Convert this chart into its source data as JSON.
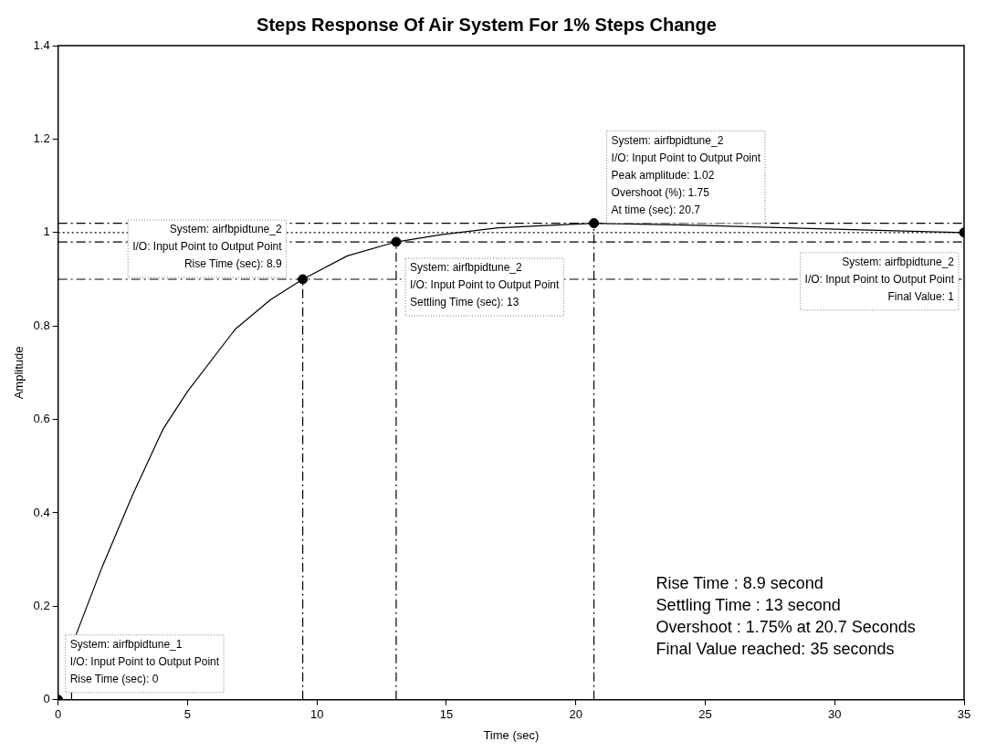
{
  "chart_data": {
    "type": "line",
    "title": "Steps Response Of Air System For 1% Steps Change",
    "xlabel": "Time (sec)",
    "ylabel": "Amplitude",
    "xlim": [
      0,
      35
    ],
    "xticks": [
      0,
      5,
      10,
      15,
      20,
      25,
      30,
      35
    ],
    "ylim": [
      0,
      1.4
    ],
    "yticks": [
      0,
      0.2,
      0.4,
      0.6,
      0.8,
      1,
      1.2,
      1.4
    ],
    "grid": false,
    "legend": false,
    "series": [
      {
        "type": "line",
        "color": "#000000",
        "marker": "none",
        "x": [
          0.69,
          1.69,
          2.89,
          4.06,
          5,
          6.84,
          8.2,
          9.45,
          11.17,
          13.06,
          14.74,
          17,
          20.7,
          25,
          30,
          35
        ],
        "values": [
          0.139,
          0.283,
          0.44,
          0.58,
          0.66,
          0.793,
          0.856,
          0.9,
          0.95,
          0.98,
          0.995,
          1.01,
          1.02,
          1.015,
          1.007,
          1
        ]
      },
      {
        "type": "scatter",
        "color": "#000000",
        "marker": "circle",
        "x": [
          0,
          9.45,
          13.06,
          20.7,
          35
        ],
        "values": [
          0,
          0.9,
          0.98,
          1.02,
          1
        ]
      }
    ],
    "ref_lines": [
      {
        "axis": "y",
        "value": 1.02,
        "line_style": "dashed"
      },
      {
        "axis": "y",
        "value": 1,
        "line_style": "dotted"
      },
      {
        "axis": "y",
        "value": 0.98,
        "line_style": "dashed"
      },
      {
        "axis": "y",
        "value": 0.9,
        "line_style": "dashed"
      },
      {
        "axis": "x",
        "value": 0.52,
        "line_style": "dashed"
      },
      {
        "axis": "x",
        "value": 9.45,
        "line_style": "dashed"
      },
      {
        "axis": "x",
        "value": 13.06,
        "line_style": "dashed"
      },
      {
        "axis": "x",
        "value": 20.7,
        "line_style": "dashed"
      }
    ],
    "annotations": [
      {
        "text": "System: airfbpidtune_1\nI/O: Input Point to Output Point\nRise Time (sec): 0",
        "x": 0,
        "y": 0
      },
      {
        "text": "System: airfbpidtune_2\nI/O: Input Point to Output Point\nRise Time (sec): 8.9",
        "x": 9.45,
        "y": 0.9
      },
      {
        "text": "System: airfbpidtune_2\nI/O: Input Point to Output Point\nSettling Time (sec): 13",
        "x": 13.06,
        "y": 0.98
      },
      {
        "text": "System: airfbpidtune_2\nI/O: Input Point to Output Point\nPeak amplitude: 1.02\nOvershoot (%): 1.75\nAt time (sec): 20.7",
        "x": 20.7,
        "y": 1.02
      },
      {
        "text": "System: airfbpidtune_2\nI/O: Input Point to Output Point\nFinal Value: 1",
        "x": 35,
        "y": 1
      },
      "Rise Time : 8.9 second\nSettling Time : 13 second\nOvershoot : 1.75% at 20.7 Seconds\nFinal Value reached: 35 seconds"
    ]
  }
}
